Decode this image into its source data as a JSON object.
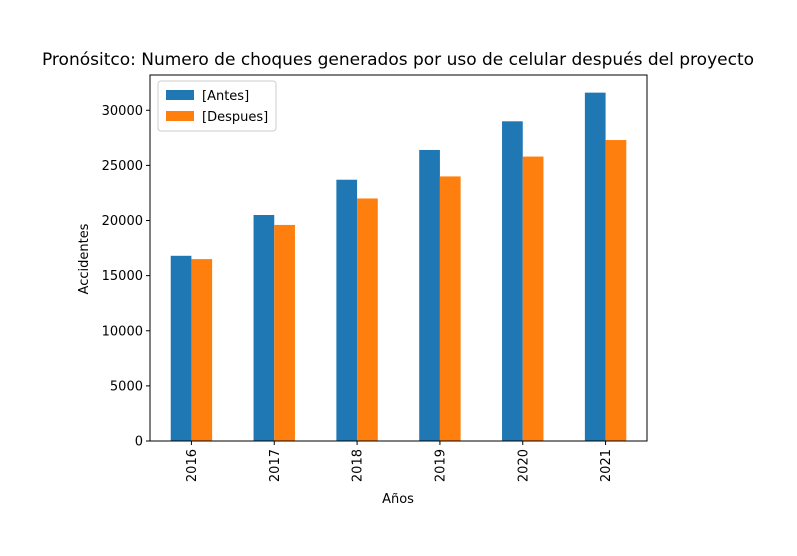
{
  "chart_data": {
    "type": "bar",
    "title": "Pronósitco: Numero de choques generados por uso de celular después del proyecto",
    "xlabel": "Años",
    "ylabel": "Accidentes",
    "categories": [
      "2016",
      "2017",
      "2018",
      "2019",
      "2020",
      "2021"
    ],
    "series": [
      {
        "name": "[Antes]",
        "color": "#1f77b4",
        "values": [
          16800,
          20500,
          23700,
          26400,
          29000,
          31600
        ]
      },
      {
        "name": "[Despues]",
        "color": "#ff7f0e",
        "values": [
          16500,
          19600,
          22000,
          24000,
          25800,
          27300
        ]
      }
    ],
    "ylim": [
      0,
      33200
    ],
    "yticks": [
      0,
      5000,
      10000,
      15000,
      20000,
      25000,
      30000
    ],
    "legend": "top-left",
    "grid": false
  }
}
